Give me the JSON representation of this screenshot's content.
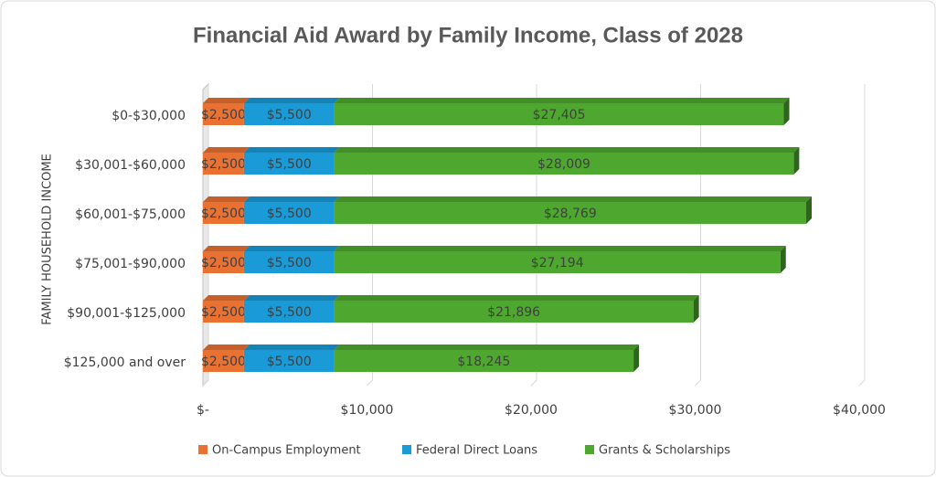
{
  "chart_data": {
    "type": "stacked-bar-horizontal",
    "title": "Financial Aid Award by Family Income, Class of 2028",
    "y_axis_label": "FAMILY HOUSEHOLD INCOME",
    "categories": [
      "$0-$30,000",
      "$30,001-$60,000",
      "$60,001-$75,000",
      "$75,001-$90,000",
      "$90,001-$125,000",
      "$125,000 and over"
    ],
    "series": [
      {
        "name": "On-Campus Employment",
        "color": "#e97132",
        "values": [
          2500,
          2500,
          2500,
          2500,
          2500,
          2500
        ],
        "value_labels": [
          "$2,500",
          "$2,500",
          "$2,500",
          "$2,500",
          "$2,500",
          "$2,500"
        ]
      },
      {
        "name": "Federal Direct Loans",
        "color": "#1a9ad6",
        "values": [
          5500,
          5500,
          5500,
          5500,
          5500,
          5500
        ],
        "value_labels": [
          "$5,500",
          "$5,500",
          "$5,500",
          "$5,500",
          "$5,500",
          "$5,500"
        ]
      },
      {
        "name": "Grants & Scholarships",
        "color": "#4ea72e",
        "values": [
          27405,
          28009,
          28769,
          27194,
          21896,
          18245
        ],
        "value_labels": [
          "$27,405",
          "$28,009",
          "$28,769",
          "$27,194",
          "$21,896",
          "$18,245"
        ]
      }
    ],
    "xlim": [
      0,
      40000
    ],
    "xticks": [
      {
        "value": 0,
        "label": "$-"
      },
      {
        "value": 10000,
        "label": "$10,000"
      },
      {
        "value": 20000,
        "label": "$20,000"
      },
      {
        "value": 30000,
        "label": "$30,000"
      },
      {
        "value": 40000,
        "label": "$40,000"
      }
    ],
    "grid": true,
    "legend": "bottom"
  }
}
